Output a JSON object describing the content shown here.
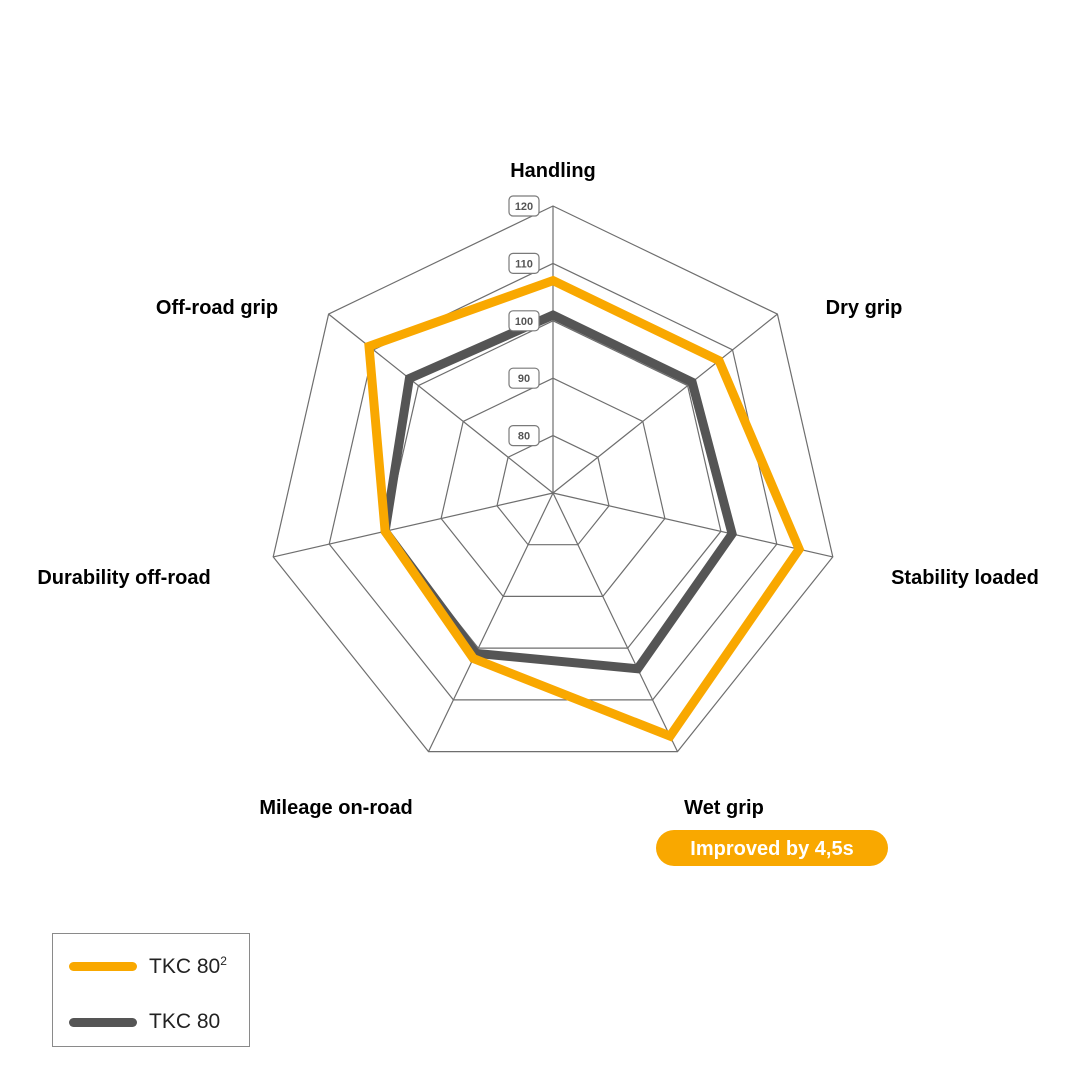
{
  "chart_data": {
    "type": "radar",
    "axes": [
      "Handling",
      "Dry grip",
      "Stability loaded",
      "Wet grip",
      "Mileage on-road",
      "Durability off-road",
      "Off-road grip"
    ],
    "ticks": [
      80,
      90,
      100,
      110,
      120
    ],
    "range": [
      70,
      120
    ],
    "series": [
      {
        "name": "TKC 80",
        "name_sup": "2",
        "color": "#F9A800",
        "values": [
          107,
          107,
          114,
          117,
          102,
          100,
          111
        ]
      },
      {
        "name": "TKC 80",
        "color": "#555555",
        "values": [
          101,
          101,
          102,
          104,
          101,
          100,
          102
        ]
      }
    ],
    "annotation": {
      "axis": "Wet grip",
      "text": "Improved by 4,5s",
      "color": "#F9A800"
    },
    "legend_position": "bottom-left",
    "grid": true
  }
}
